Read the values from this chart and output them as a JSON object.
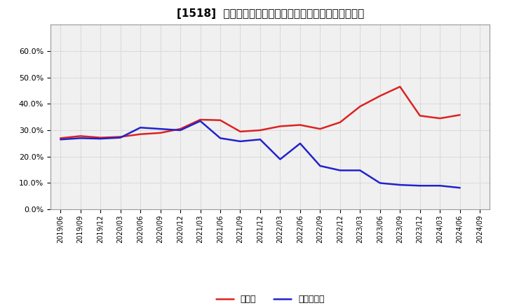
{
  "title": "[1518]  現預金、有利子負債の総資産に対する比率の推移",
  "x_labels": [
    "2019/06",
    "2019/09",
    "2019/12",
    "2020/03",
    "2020/06",
    "2020/09",
    "2020/12",
    "2021/03",
    "2021/06",
    "2021/09",
    "2021/12",
    "2022/03",
    "2022/06",
    "2022/09",
    "2022/12",
    "2023/03",
    "2023/06",
    "2023/09",
    "2023/12",
    "2024/03",
    "2024/06",
    "2024/09"
  ],
  "cash_ratio": [
    0.27,
    0.278,
    0.272,
    0.275,
    0.285,
    0.29,
    0.305,
    0.34,
    0.338,
    0.295,
    0.3,
    0.315,
    0.32,
    0.305,
    0.33,
    0.39,
    0.43,
    0.465,
    0.355,
    0.345,
    0.358,
    null
  ],
  "debt_ratio": [
    0.265,
    0.27,
    0.268,
    0.272,
    0.31,
    0.305,
    0.3,
    0.335,
    0.27,
    0.258,
    0.265,
    0.19,
    0.25,
    0.165,
    0.148,
    0.148,
    0.1,
    0.093,
    0.09,
    0.09,
    0.082,
    null
  ],
  "cash_color": "#dd2222",
  "debt_color": "#2222cc",
  "background_color": "#f0f0f0",
  "grid_color": "#aaaaaa",
  "ylim": [
    0.0,
    0.7
  ],
  "yticks": [
    0.0,
    0.1,
    0.2,
    0.3,
    0.4,
    0.5,
    0.6
  ],
  "legend_cash": "現預金",
  "legend_debt": "有利子負債",
  "linewidth": 1.8
}
